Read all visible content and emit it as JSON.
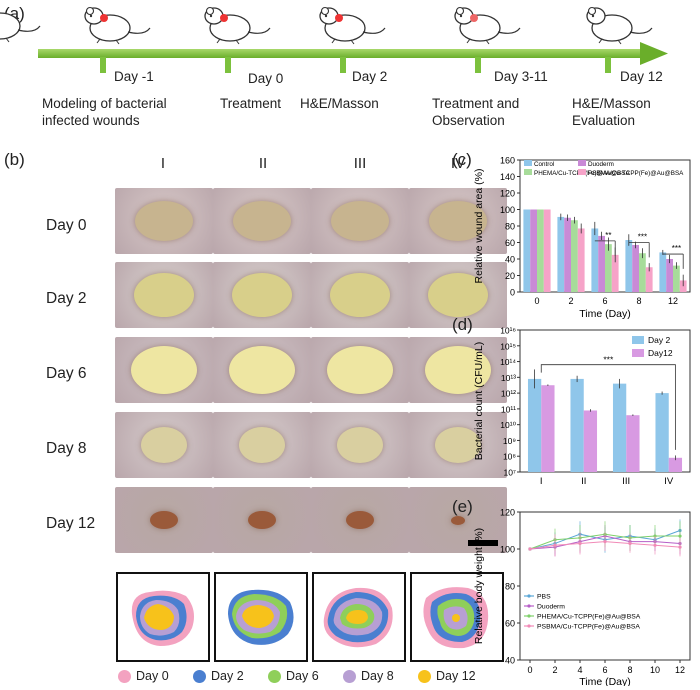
{
  "panel_a": {
    "label": "(a)",
    "events": [
      {
        "day": "Day -1",
        "desc": "Modeling of bacterial infected wounds"
      },
      {
        "day": "Day 0",
        "desc": "Treatment"
      },
      {
        "day": "Day 2",
        "desc": "H&E/Masson"
      },
      {
        "day": "Day 3-11",
        "desc": "Treatment and Observation"
      },
      {
        "day": "Day 12",
        "desc": "H&E/Masson Evaluation"
      }
    ]
  },
  "panel_b": {
    "label": "(b)",
    "groups": [
      "I",
      "II",
      "III",
      "IV"
    ],
    "days": [
      "Day 0",
      "Day 2",
      "Day 6",
      "Day 8",
      "Day 12"
    ],
    "legend": [
      {
        "label": "Day 0",
        "color": "#f3a2c0"
      },
      {
        "label": "Day 2",
        "color": "#4a7fd0"
      },
      {
        "label": "Day 6",
        "color": "#8fcf5a"
      },
      {
        "label": "Day 8",
        "color": "#b79fd3"
      },
      {
        "label": "Day 12",
        "color": "#f7c21b"
      }
    ]
  },
  "chart_data": [
    {
      "panel": "(c)",
      "type": "bar",
      "xlabel": "Time (Day)",
      "ylabel": "Relative wound area (%)",
      "categories": [
        "0",
        "2",
        "6",
        "8",
        "12"
      ],
      "ylim": [
        0,
        160
      ],
      "yticks": [
        0,
        20,
        40,
        60,
        80,
        100,
        120,
        140,
        160
      ],
      "legend_position": "top",
      "series": [
        {
          "name": "Control",
          "color": "#8fc6ea",
          "values": [
            100,
            91,
            77,
            63,
            48
          ],
          "errors": [
            0,
            4,
            8,
            7,
            3
          ]
        },
        {
          "name": "Duoderm",
          "color": "#c98ad6",
          "values": [
            100,
            90,
            68,
            57,
            40
          ],
          "errors": [
            0,
            4,
            5,
            4,
            5
          ]
        },
        {
          "name": "PHEMA/Cu-TCPP(Fe)@Au@BSA",
          "color": "#a7dc9a",
          "values": [
            100,
            87,
            58,
            47,
            32
          ],
          "errors": [
            0,
            4,
            8,
            6,
            4
          ]
        },
        {
          "name": "PSBMA/Cu-TCPP(Fe)@Au@BSA",
          "color": "#f6a3c8",
          "values": [
            100,
            77,
            45,
            30,
            14
          ],
          "errors": [
            0,
            6,
            9,
            5,
            7
          ]
        }
      ],
      "annotations": [
        "**",
        "***",
        "***"
      ]
    },
    {
      "panel": "(d)",
      "type": "bar",
      "xlabel": "",
      "ylabel": "Bacterial count (CFU/mL)",
      "categories": [
        "I",
        "II",
        "III",
        "IV"
      ],
      "yscale": "log",
      "ylim_exp": [
        7,
        16
      ],
      "ytick_labels": [
        "10⁷",
        "10⁸",
        "10⁹",
        "10¹⁰",
        "10¹¹",
        "10¹²",
        "10¹³",
        "10¹⁴",
        "10¹⁵",
        "10¹⁶"
      ],
      "legend_position": "top-right",
      "series": [
        {
          "name": "Day 2",
          "color": "#8fc6ea",
          "values_exp": [
            12.9,
            12.9,
            12.6,
            12.0
          ],
          "errors": [
            0.6,
            0.2,
            0.3,
            0.1
          ]
        },
        {
          "name": "Day12",
          "color": "#d89ae2",
          "values_exp": [
            12.5,
            10.9,
            10.6,
            7.9
          ],
          "errors": [
            0.05,
            0.08,
            0.05,
            0.15
          ]
        }
      ],
      "annotations": [
        "***"
      ]
    },
    {
      "panel": "(e)",
      "type": "line",
      "xlabel": "Time (Day)",
      "ylabel": "Relative body weight (%)",
      "x": [
        0,
        2,
        4,
        6,
        8,
        10,
        12
      ],
      "ylim": [
        40,
        120
      ],
      "yticks": [
        40,
        60,
        80,
        100,
        120
      ],
      "xticks": [
        0,
        2,
        4,
        6,
        8,
        10,
        12
      ],
      "legend_position": "bottom-left",
      "series": [
        {
          "name": "PBS",
          "color": "#5aa6d6",
          "values": [
            100,
            103,
            108,
            105,
            107,
            105,
            110
          ],
          "errors": [
            0,
            6,
            7,
            7,
            6,
            6,
            6
          ]
        },
        {
          "name": "Duoderm",
          "color": "#b65fc7",
          "values": [
            100,
            101,
            104,
            107,
            104,
            104,
            103
          ],
          "errors": [
            0,
            5,
            6,
            6,
            5,
            5,
            6
          ]
        },
        {
          "name": "PHEMA/Cu-TCPP(Fe)@Au@BSA",
          "color": "#7fd06a",
          "values": [
            100,
            105,
            106,
            108,
            106,
            107,
            107
          ],
          "errors": [
            0,
            6,
            7,
            7,
            7,
            6,
            8
          ]
        },
        {
          "name": "PSBMA/Cu-TCPP(Fe)@Au@BSA",
          "color": "#f18ab7",
          "values": [
            100,
            102,
            103,
            104,
            103,
            102,
            101
          ],
          "errors": [
            0,
            6,
            6,
            5,
            5,
            5,
            5
          ]
        }
      ]
    }
  ],
  "panel_c_label": "(c)",
  "panel_d_label": "(d)",
  "panel_e_label": "(e)"
}
